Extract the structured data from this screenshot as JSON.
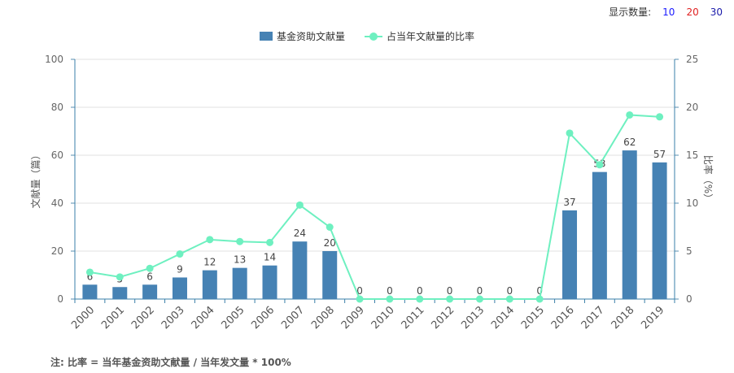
{
  "display_count": {
    "label": "显示数量:",
    "options": [
      {
        "label": "10",
        "color": "#1a1aff"
      },
      {
        "label": "20",
        "color": "#e02020"
      },
      {
        "label": "30",
        "color": "#1a1aaa"
      }
    ]
  },
  "footnote": "注: 比率 = 当年基金资助文献量 / 当年发文量 * 100%",
  "chart_data": {
    "type": "bar+line",
    "categories": [
      "2000",
      "2001",
      "2002",
      "2003",
      "2004",
      "2005",
      "2006",
      "2007",
      "2008",
      "2009",
      "2010",
      "2011",
      "2012",
      "2013",
      "2014",
      "2015",
      "2016",
      "2017",
      "2018",
      "2019"
    ],
    "series": [
      {
        "name": "基金资助文献量",
        "type": "bar",
        "axis": "left",
        "color": "#4682B4",
        "values": [
          6,
          5,
          6,
          9,
          12,
          13,
          14,
          24,
          20,
          0,
          0,
          0,
          0,
          0,
          0,
          0,
          37,
          53,
          62,
          57
        ]
      },
      {
        "name": "占当年文献量的比率",
        "type": "line",
        "axis": "right",
        "color": "#6EF0C0",
        "values": [
          2.8,
          2.3,
          3.2,
          4.7,
          6.2,
          6.0,
          5.9,
          9.8,
          7.5,
          0,
          0,
          0,
          0,
          0,
          0,
          0,
          17.3,
          14.0,
          19.2,
          19.0
        ]
      }
    ],
    "y_left": {
      "label": "文献量（篇）",
      "min": 0,
      "max": 100,
      "ticks": [
        0,
        20,
        40,
        60,
        80,
        100
      ]
    },
    "y_right": {
      "label": "比率（%）",
      "min": 0,
      "max": 25,
      "ticks": [
        0,
        5,
        10,
        15,
        20,
        25
      ]
    },
    "grid": true,
    "legend_position": "top-center"
  }
}
